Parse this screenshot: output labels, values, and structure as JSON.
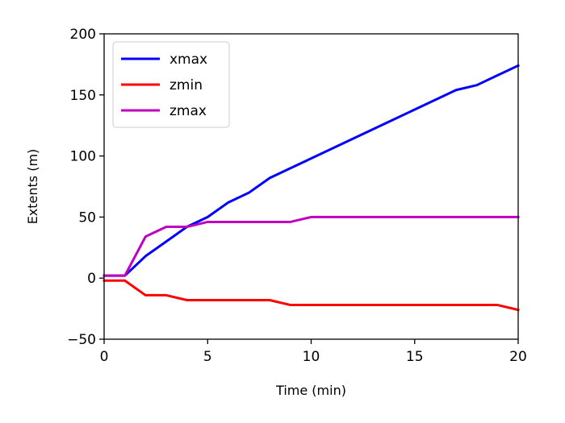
{
  "chart_data": {
    "type": "line",
    "title": "",
    "xlabel": "Time (min)",
    "ylabel": "Extents (m)",
    "xlim": [
      0,
      20
    ],
    "ylim": [
      -50,
      200
    ],
    "xticks": [
      0,
      5,
      10,
      15,
      20
    ],
    "yticks": [
      -50,
      0,
      50,
      100,
      150,
      200
    ],
    "xtick_labels": [
      "0",
      "5",
      "10",
      "15",
      "20"
    ],
    "ytick_labels": [
      "−50",
      "0",
      "50",
      "100",
      "150",
      "200"
    ],
    "grid": false,
    "legend_position": "top-left",
    "x": [
      0,
      1,
      2,
      3,
      4,
      5,
      6,
      7,
      8,
      9,
      10,
      11,
      12,
      13,
      14,
      15,
      16,
      17,
      18,
      19,
      20
    ],
    "series": [
      {
        "name": "xmax",
        "color": "#0000ff",
        "values": [
          2,
          2,
          18,
          30,
          42,
          50,
          62,
          70,
          82,
          90,
          98,
          106,
          114,
          122,
          130,
          138,
          146,
          154,
          158,
          166,
          174
        ]
      },
      {
        "name": "zmin",
        "color": "#ff0000",
        "values": [
          -2,
          -2,
          -14,
          -14,
          -18,
          -18,
          -18,
          -18,
          -18,
          -22,
          -22,
          -22,
          -22,
          -22,
          -22,
          -22,
          -22,
          -22,
          -22,
          -22,
          -26
        ]
      },
      {
        "name": "zmax",
        "color": "#bf00bf",
        "values": [
          2,
          2,
          34,
          42,
          42,
          46,
          46,
          46,
          46,
          46,
          50,
          50,
          50,
          50,
          50,
          50,
          50,
          50,
          50,
          50,
          50
        ]
      }
    ]
  }
}
